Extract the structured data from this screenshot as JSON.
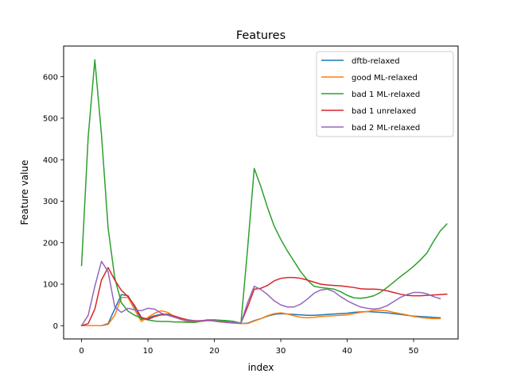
{
  "chart_data": {
    "type": "line",
    "title": "Features",
    "xlabel": "index",
    "ylabel": "Feature value",
    "xlim": [
      -2.7,
      56.7
    ],
    "ylim": [
      -32,
      674
    ],
    "xticks": [
      0,
      10,
      20,
      30,
      40,
      50
    ],
    "yticks": [
      0,
      100,
      200,
      300,
      400,
      500,
      600
    ],
    "grid": false,
    "legend_position": "top-right",
    "series": [
      {
        "name": "dftb-relaxed",
        "color": "#1f77b4",
        "values": [
          0,
          0,
          0,
          0,
          5,
          40,
          75,
          72,
          45,
          15,
          18,
          24,
          27,
          28,
          22,
          15,
          10,
          9,
          12,
          14,
          14,
          12,
          9,
          7,
          5,
          6,
          12,
          17,
          23,
          27,
          29,
          28,
          27,
          26,
          25,
          25,
          26,
          27,
          28,
          29,
          30,
          32,
          33,
          34,
          33,
          32,
          31,
          29,
          27,
          25,
          23,
          22,
          21,
          20,
          19
        ]
      },
      {
        "name": "good ML-relaxed",
        "color": "#ff7f0e",
        "values": [
          0,
          0,
          0,
          0,
          3,
          25,
          68,
          68,
          38,
          10,
          20,
          30,
          36,
          32,
          22,
          15,
          9,
          8,
          10,
          12,
          12,
          10,
          7,
          6,
          5,
          5,
          11,
          17,
          24,
          29,
          31,
          28,
          24,
          20,
          19,
          20,
          22,
          23,
          24,
          25,
          26,
          29,
          32,
          34,
          37,
          37,
          36,
          32,
          29,
          26,
          22,
          20,
          18,
          17,
          17
        ]
      },
      {
        "name": "bad 1 ML-relaxed",
        "color": "#2ca02c",
        "values": [
          145,
          455,
          641,
          460,
          235,
          115,
          55,
          35,
          25,
          18,
          14,
          11,
          10,
          10,
          9,
          9,
          8,
          8,
          11,
          13,
          14,
          13,
          12,
          10,
          6,
          185,
          379,
          335,
          285,
          240,
          208,
          180,
          155,
          130,
          110,
          95,
          92,
          90,
          88,
          82,
          73,
          67,
          66,
          68,
          72,
          80,
          92,
          105,
          118,
          130,
          143,
          158,
          175,
          203,
          228,
          245
        ]
      },
      {
        "name": "bad 1 unrelaxed",
        "color": "#d62728",
        "values": [
          0,
          5,
          40,
          110,
          140,
          110,
          85,
          70,
          48,
          20,
          15,
          22,
          26,
          26,
          23,
          18,
          14,
          12,
          12,
          13,
          11,
          9,
          8,
          7,
          6,
          45,
          88,
          90,
          97,
          108,
          114,
          116,
          116,
          114,
          110,
          105,
          100,
          98,
          97,
          96,
          94,
          92,
          89,
          88,
          88,
          87,
          84,
          80,
          76,
          73,
          72,
          72,
          73,
          74,
          75,
          76
        ]
      },
      {
        "name": "bad 2 ML-relaxed",
        "color": "#9467bd",
        "values": [
          0,
          25,
          95,
          155,
          130,
          45,
          32,
          42,
          38,
          36,
          42,
          40,
          30,
          25,
          20,
          15,
          12,
          11,
          12,
          12,
          12,
          10,
          8,
          7,
          6,
          55,
          95,
          87,
          75,
          60,
          50,
          45,
          45,
          52,
          64,
          78,
          86,
          88,
          82,
          70,
          60,
          52,
          45,
          42,
          40,
          42,
          48,
          58,
          68,
          75,
          80,
          80,
          77,
          70,
          65
        ]
      }
    ]
  }
}
